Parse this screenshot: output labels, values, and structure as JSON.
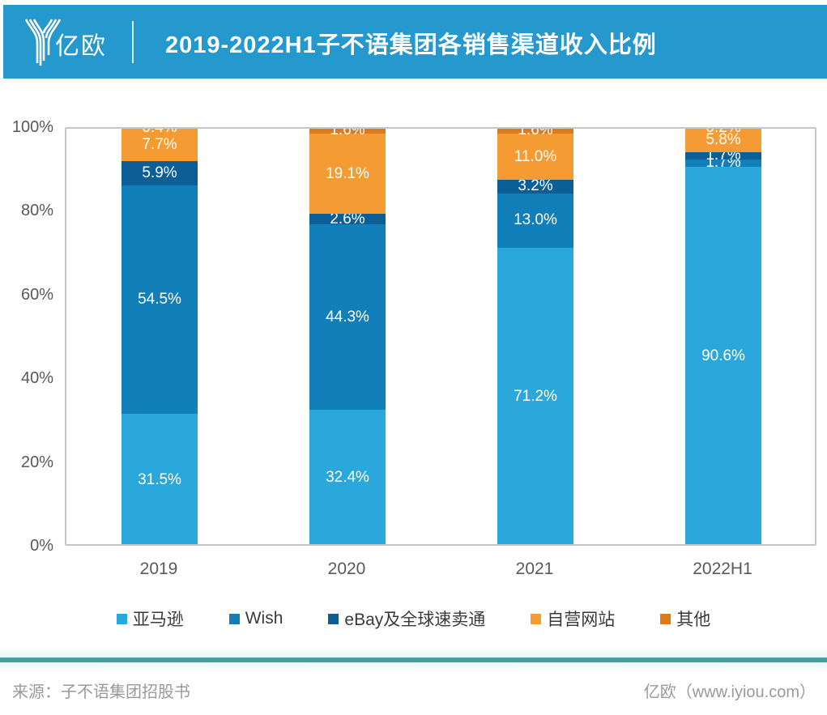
{
  "header": {
    "logo_text": "亿欧",
    "title": "2019-2022H1子不语集团各销售渠道收入比例"
  },
  "chart_data": {
    "type": "bar",
    "stacked": true,
    "title": "2019-2022H1子不语集团各销售渠道收入比例",
    "categories": [
      "2019",
      "2020",
      "2021",
      "2022H1"
    ],
    "series": [
      {
        "name": "亚马逊",
        "color": "#2aa7db",
        "values": [
          31.5,
          32.4,
          71.2,
          90.6
        ]
      },
      {
        "name": "Wish",
        "color": "#1180ba",
        "values": [
          54.5,
          44.3,
          13.0,
          1.7
        ]
      },
      {
        "name": "eBay及全球速卖通",
        "color": "#0c5e97",
        "values": [
          5.9,
          2.6,
          3.2,
          1.7
        ]
      },
      {
        "name": "自营网站",
        "color": "#f49b33",
        "values": [
          7.7,
          19.1,
          11.0,
          5.8
        ]
      },
      {
        "name": "其他",
        "color": "#dc7a1e",
        "values": [
          0.4,
          1.6,
          1.6,
          0.2
        ]
      }
    ],
    "xlabel": "",
    "ylabel": "",
    "ylim": [
      0,
      100
    ],
    "y_ticks": [
      "0%",
      "20%",
      "40%",
      "60%",
      "80%",
      "100%"
    ],
    "grid": false,
    "legend_position": "bottom",
    "data_label_format": "percent_one_decimal"
  },
  "colors": {
    "banner": "#2598cd",
    "footer_rule": "#4c9ca2",
    "plot_border": "#c7c7c7",
    "axis_text": "#595959",
    "legend_text": "#3a3a3a"
  },
  "footer": {
    "source": "来源：子不语集团招股书",
    "brand": "亿欧（www.iyiou.com）"
  }
}
